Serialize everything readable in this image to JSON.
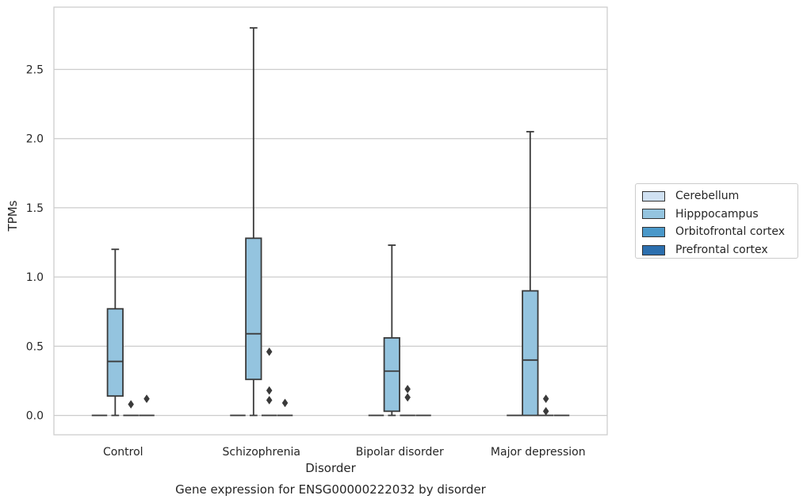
{
  "chart_data": {
    "type": "box",
    "title": "Gene expression for ENSG00000222032 by disorder",
    "xlabel": "Disorder",
    "ylabel": "TPMs",
    "ylim": [
      -0.14,
      2.95
    ],
    "yticks": [
      "0.0",
      "0.5",
      "1.0",
      "1.5",
      "2.0",
      "2.5"
    ],
    "categories": [
      "Control",
      "Schizophrenia",
      "Bipolar disorder",
      "Major depression"
    ],
    "grid": "horizontal",
    "legend_position": "right",
    "series": [
      {
        "name": "Cerebellum",
        "color": "#d0e1f2",
        "boxes": [
          {
            "min": 0,
            "q1": 0,
            "median": 0,
            "q3": 0,
            "max": 0,
            "outliers": []
          },
          {
            "min": 0,
            "q1": 0,
            "median": 0,
            "q3": 0,
            "max": 0,
            "outliers": []
          },
          {
            "min": 0,
            "q1": 0,
            "median": 0,
            "q3": 0,
            "max": 0,
            "outliers": []
          },
          {
            "min": 0,
            "q1": 0,
            "median": 0,
            "q3": 0,
            "max": 0,
            "outliers": []
          }
        ]
      },
      {
        "name": "Hipppocampus",
        "color": "#94c4df",
        "boxes": [
          {
            "min": 0,
            "q1": 0.14,
            "median": 0.39,
            "q3": 0.77,
            "max": 1.2,
            "outliers": []
          },
          {
            "min": 0,
            "q1": 0.26,
            "median": 0.59,
            "q3": 1.28,
            "max": 2.8,
            "outliers": []
          },
          {
            "min": 0,
            "q1": 0.03,
            "median": 0.32,
            "q3": 0.56,
            "max": 1.23,
            "outliers": []
          },
          {
            "min": 0,
            "q1": 0,
            "median": 0.4,
            "q3": 0.9,
            "max": 2.05,
            "outliers": []
          }
        ]
      },
      {
        "name": "Orbitofrontal cortex",
        "color": "#4a98c9",
        "boxes": [
          {
            "min": 0,
            "q1": 0,
            "median": 0,
            "q3": 0,
            "max": 0,
            "outliers": [
              0.08
            ]
          },
          {
            "min": 0,
            "q1": 0,
            "median": 0,
            "q3": 0,
            "max": 0,
            "outliers": [
              0.46,
              0.18,
              0.11
            ]
          },
          {
            "min": 0,
            "q1": 0,
            "median": 0,
            "q3": 0,
            "max": 0,
            "outliers": [
              0.19,
              0.13
            ]
          },
          {
            "min": 0,
            "q1": 0,
            "median": 0,
            "q3": 0,
            "max": 0,
            "outliers": [
              0.12,
              0.03
            ]
          }
        ]
      },
      {
        "name": "Prefrontal cortex",
        "color": "#2c6fae",
        "boxes": [
          {
            "min": 0,
            "q1": 0,
            "median": 0,
            "q3": 0,
            "max": 0,
            "outliers": [
              0.12
            ]
          },
          {
            "min": 0,
            "q1": 0,
            "median": 0,
            "q3": 0,
            "max": 0,
            "outliers": [
              0.09
            ]
          },
          {
            "min": 0,
            "q1": 0,
            "median": 0,
            "q3": 0,
            "max": 0,
            "outliers": []
          },
          {
            "min": 0,
            "q1": 0,
            "median": 0,
            "q3": 0,
            "max": 0,
            "outliers": []
          }
        ]
      }
    ]
  }
}
